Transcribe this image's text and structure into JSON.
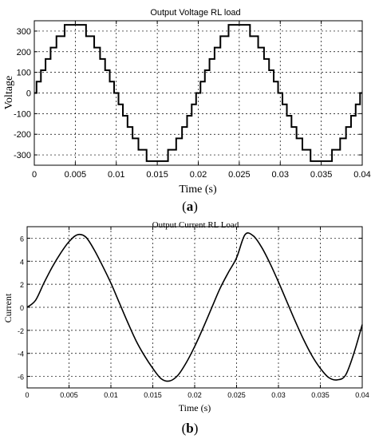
{
  "chart_data": [
    {
      "type": "line",
      "title": "Output Voltage RL load",
      "xlabel": "Time (s)",
      "ylabel": "Voltage",
      "xlim": [
        0,
        0.04
      ],
      "ylim": [
        -350,
        350
      ],
      "xticks": [
        0,
        0.005,
        0.01,
        0.015,
        0.02,
        0.025,
        0.03,
        0.035,
        0.04
      ],
      "xtick_labels": [
        "0",
        "0.005",
        "0.01",
        "0.015",
        "0.02",
        "0.025",
        "0.03",
        "0.035",
        "0.04"
      ],
      "yticks": [
        -300,
        -200,
        -100,
        0,
        100,
        200,
        300
      ],
      "ytick_labels": [
        "-300",
        "-200",
        "-100",
        "0",
        "100",
        "200",
        "300"
      ],
      "grid": true,
      "series": [
        {
          "style": "staircase",
          "period": 0.02,
          "step_levels": [
            0,
            55,
            110,
            165,
            220,
            275,
            330
          ],
          "description_of_shape": "11-level stepped sine, amplitude 330",
          "x": [
            0,
            0.0005,
            0.0011,
            0.0016,
            0.0022,
            0.0027,
            0.0033,
            0.0038,
            0.0044,
            0.0049,
            0.0055,
            0.006,
            0.0066,
            0.0071,
            0.0077,
            0.0082,
            0.0088,
            0.0093,
            0.0099,
            0.0104
          ],
          "y": [
            0,
            55,
            110,
            165,
            220,
            275,
            330,
            330,
            330,
            330,
            330,
            330,
            275,
            220,
            165,
            110,
            55,
            0,
            -55,
            -110
          ]
        }
      ],
      "caption": "a"
    },
    {
      "type": "line",
      "title": "Output Current RL Load",
      "xlabel": "Time (s)",
      "ylabel": "Current",
      "xlim": [
        0,
        0.04
      ],
      "ylim": [
        -7,
        7
      ],
      "xticks": [
        0,
        0.005,
        0.01,
        0.015,
        0.02,
        0.025,
        0.03,
        0.035,
        0.04
      ],
      "xtick_labels": [
        "0",
        "0.005",
        "0.01",
        "0.015",
        "0.02",
        "0.025",
        "0.03",
        "0.035",
        "0.04"
      ],
      "yticks": [
        -6,
        -4,
        -2,
        0,
        2,
        4,
        6
      ],
      "ytick_labels": [
        "-6",
        "-4",
        "-2",
        "0",
        "2",
        "4",
        "6"
      ],
      "grid": true,
      "series": [
        {
          "x": [
            0,
            0.001,
            0.002,
            0.003,
            0.004,
            0.005,
            0.006,
            0.007,
            0.008,
            0.009,
            0.01,
            0.011,
            0.012,
            0.013,
            0.014,
            0.015,
            0.016,
            0.017,
            0.018,
            0.019,
            0.02,
            0.021,
            0.022,
            0.023,
            0.024,
            0.025,
            0.026,
            0.027,
            0.028,
            0.029,
            0.03,
            0.031,
            0.032,
            0.033,
            0.034,
            0.035,
            0.036,
            0.037,
            0.038,
            0.039,
            0.04
          ],
          "y": [
            0,
            0.6,
            2.1,
            3.5,
            4.7,
            5.7,
            6.3,
            6.1,
            5.0,
            3.6,
            2.1,
            0.4,
            -1.3,
            -2.9,
            -4.2,
            -5.3,
            -6.2,
            -6.4,
            -5.9,
            -4.8,
            -3.4,
            -1.8,
            -0.1,
            1.6,
            3.0,
            4.3,
            6.3,
            6.2,
            5.2,
            3.8,
            2.2,
            0.5,
            -1.2,
            -2.8,
            -4.2,
            -5.3,
            -6.1,
            -6.3,
            -5.9,
            -4.0,
            -1.5
          ]
        }
      ],
      "caption": "b"
    }
  ]
}
